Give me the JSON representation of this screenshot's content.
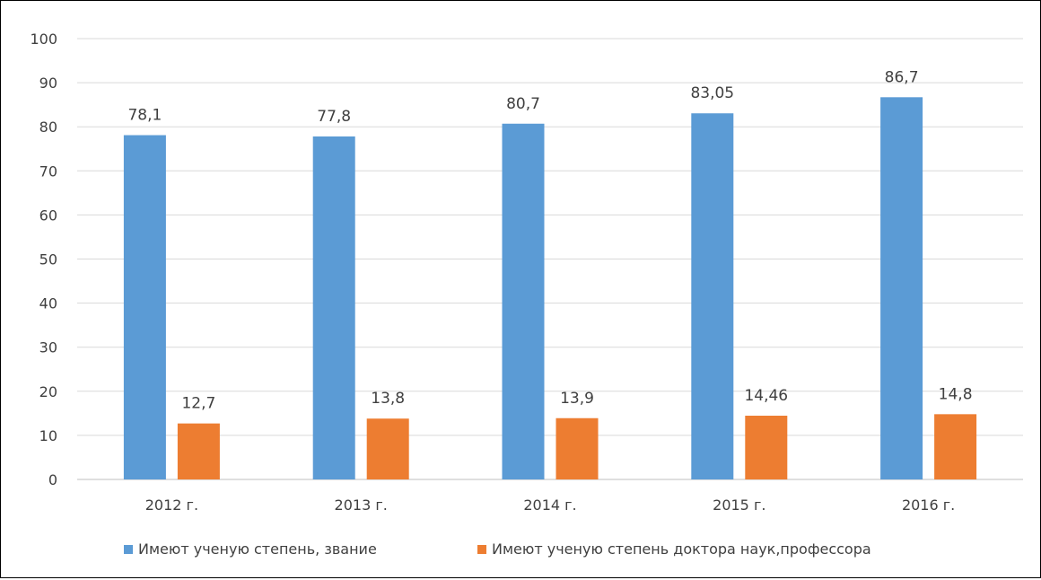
{
  "chart_data": {
    "type": "bar",
    "categories": [
      "2012 г.",
      "2013 г.",
      "2014 г.",
      "2015 г.",
      "2016 г."
    ],
    "series": [
      {
        "name": "Имеют ученую степень, звание",
        "values": [
          78.1,
          77.8,
          80.7,
          83.05,
          86.7
        ],
        "labels": [
          "78,1",
          "77,8",
          "80,7",
          "83,05",
          "86,7"
        ],
        "color": "#5B9BD5"
      },
      {
        "name": "Имеют ученую степень доктора наук,профессора",
        "values": [
          12.7,
          13.8,
          13.9,
          14.46,
          14.8
        ],
        "labels": [
          "12,7",
          "13,8",
          "13,9",
          "14,46",
          "14,8"
        ],
        "color": "#ED7D31"
      }
    ],
    "ylim": [
      0,
      100
    ],
    "yticks": [
      0,
      10,
      20,
      30,
      40,
      50,
      60,
      70,
      80,
      90,
      100
    ],
    "grid": true,
    "legend_position": "bottom"
  }
}
